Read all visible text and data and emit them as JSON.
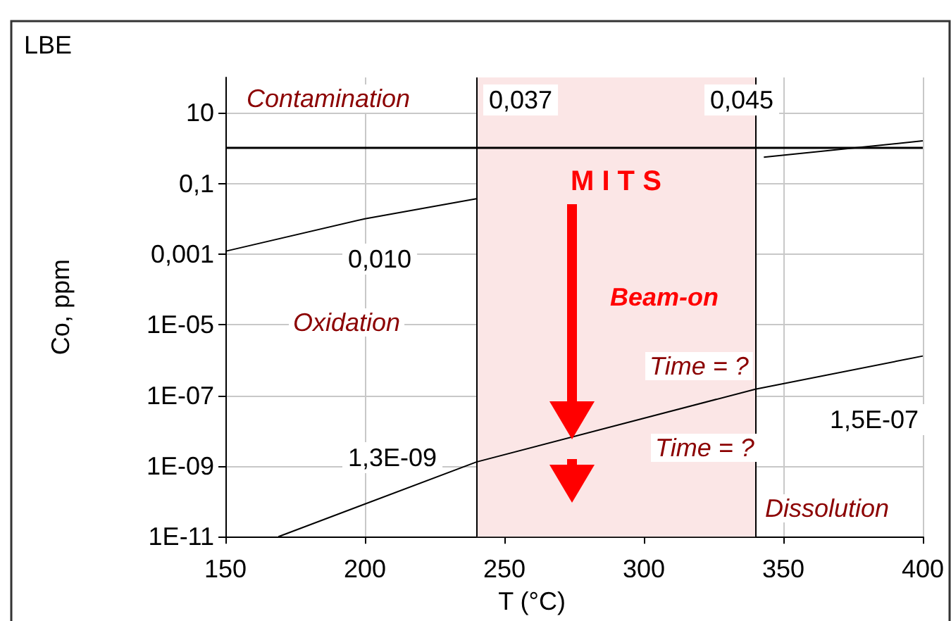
{
  "chart_data": {
    "type": "line",
    "title": "LBE",
    "xlabel": "T (°C)",
    "ylabel": "Co, ppm",
    "log": "y",
    "xlim": [
      150,
      400
    ],
    "xticks": [
      150,
      200,
      250,
      300,
      350,
      400
    ],
    "ylim": [
      1e-11,
      100
    ],
    "yticks": [
      {
        "value": 1e-11,
        "label": "1E-11"
      },
      {
        "value": 1e-09,
        "label": "1E-09"
      },
      {
        "value": 1e-07,
        "label": "1E-07"
      },
      {
        "value": 1e-05,
        "label": "1E-05"
      },
      {
        "value": 0.001,
        "label": "0,001"
      },
      {
        "value": 0.1,
        "label": "0,1"
      },
      {
        "value": 10,
        "label": "10"
      }
    ],
    "grid": true,
    "series": [
      {
        "color": "#000000",
        "x": [
          150,
          200,
          240
        ],
        "values": [
          0.0012,
          0.01,
          0.037
        ]
      },
      {
        "color": "#000000",
        "x": [
          343,
          400
        ],
        "values": [
          0.55,
          1.6
        ]
      },
      {
        "color": "#000000",
        "x": [
          169,
          240,
          340,
          400
        ],
        "values": [
          1e-11,
          1.3e-09,
          1.5e-07,
          1.3e-06
        ]
      }
    ],
    "ref_lines": [
      {
        "axis": "y",
        "value": 1,
        "color": "#000000"
      },
      {
        "axis": "x",
        "value": 240,
        "color": "#000000"
      },
      {
        "axis": "x",
        "value": 340,
        "color": "#000000"
      }
    ],
    "bands": [
      {
        "axis": "x",
        "from": 240,
        "to": 340,
        "label": "M I T S",
        "color": "#fbe6e6"
      }
    ],
    "annotations": [
      "Contamination",
      "0,037",
      "0,045",
      "0,010",
      "Oxidation",
      "Beam-on",
      "Time = ?",
      "Time = ?",
      "1,3E-09",
      "1,5E-07",
      "Dissolution"
    ]
  }
}
